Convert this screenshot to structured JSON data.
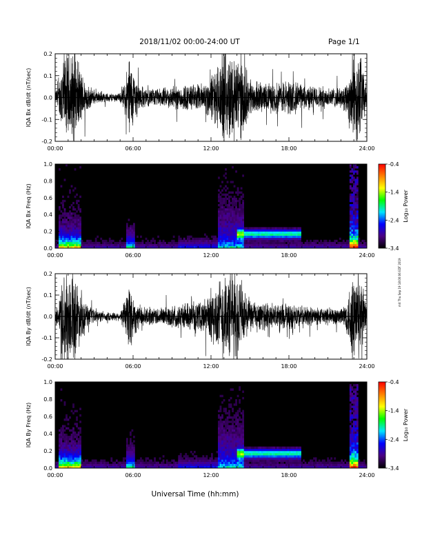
{
  "header": {
    "date_range": "2018/11/02  00:00-24:00 UT",
    "page": "Page 1/1"
  },
  "x_axis_title": "Universal Time (hh:mm)",
  "side_stamp": "mit Thu Sep 19 18:00:06 EDT 2019",
  "colorbar": {
    "label": "Log₁₀ Power",
    "ticks": [
      "-0.4",
      "-1.4",
      "-2.4",
      "-3.4"
    ],
    "range": [
      -3.4,
      -0.4
    ],
    "colors": [
      "#000000",
      "#4b0082",
      "#0000ff",
      "#00e5ff",
      "#00ff00",
      "#ffff00",
      "#ff8000",
      "#ff0000"
    ]
  },
  "chart_data": [
    {
      "type": "line",
      "ylabel": "IQA Bx dB/dt (nT/sec)",
      "xlim": [
        0,
        24
      ],
      "ylim": [
        -0.2,
        0.2
      ],
      "x_ticks": [
        "00:00",
        "06:00",
        "12:00",
        "18:00",
        "24:00"
      ],
      "y_ticks": [
        "0.2",
        "0.1",
        "0.0",
        "-0.1",
        "-0.2"
      ],
      "envelope": {
        "x": [
          0,
          0.3,
          0.5,
          1,
          1.5,
          2,
          2.5,
          3,
          4,
          5,
          5.4,
          5.7,
          6,
          6.5,
          7,
          8,
          9,
          10,
          11,
          11.5,
          12,
          12.5,
          13,
          13.5,
          14,
          14.5,
          15,
          16,
          17,
          18,
          19,
          20,
          21,
          22,
          22.5,
          22.8,
          23,
          23.5,
          24
        ],
        "amplitude": [
          0.03,
          0.06,
          0.2,
          0.2,
          0.2,
          0.12,
          0.06,
          0.03,
          0.02,
          0.02,
          0.08,
          0.2,
          0.12,
          0.06,
          0.04,
          0.04,
          0.05,
          0.06,
          0.06,
          0.07,
          0.1,
          0.15,
          0.2,
          0.2,
          0.2,
          0.16,
          0.08,
          0.06,
          0.07,
          0.08,
          0.06,
          0.05,
          0.05,
          0.04,
          0.08,
          0.2,
          0.2,
          0.2,
          0.04
        ]
      }
    },
    {
      "type": "heatmap",
      "ylabel": "IQA Bx Freq (Hz)",
      "xlim": [
        0,
        24
      ],
      "ylim": [
        0.0,
        1.0
      ],
      "x_ticks": [
        "00:00",
        "06:00",
        "12:00",
        "18:00",
        "24:00"
      ],
      "y_ticks": [
        "1.0",
        "0.8",
        "0.6",
        "0.4",
        "0.2",
        "0.0"
      ],
      "value_range": [
        -3.4,
        -0.4
      ],
      "features": [
        {
          "label": "strong broadband low-frequency activity",
          "start": 0.3,
          "end": 2.0
        },
        {
          "label": "burst",
          "start": 5.5,
          "end": 6.1
        },
        {
          "label": "broadband burst",
          "start": 12.5,
          "end": 14.5
        },
        {
          "label": "banded emission near 0.15-0.2 Hz",
          "start": 14.0,
          "end": 19.0
        },
        {
          "label": "strong broadband low-frequency activity",
          "start": 22.7,
          "end": 23.3
        }
      ]
    },
    {
      "type": "line",
      "ylabel": "IQA By dB/dt (nT/sec)",
      "xlim": [
        0,
        24
      ],
      "ylim": [
        -0.2,
        0.2
      ],
      "x_ticks": [
        "00:00",
        "06:00",
        "12:00",
        "18:00",
        "24:00"
      ],
      "y_ticks": [
        "0.2",
        "0.1",
        "0.0",
        "-0.1",
        "-0.2"
      ],
      "envelope": {
        "x": [
          0,
          0.3,
          0.5,
          1,
          1.5,
          2,
          2.5,
          3,
          4,
          5,
          5.4,
          5.7,
          6,
          6.5,
          7,
          8,
          9,
          10,
          11,
          11.5,
          12,
          12.5,
          13,
          13.5,
          14,
          14.5,
          15,
          16,
          17,
          18,
          19,
          20,
          21,
          22,
          22.5,
          22.8,
          23,
          23.5,
          24
        ],
        "amplitude": [
          0.03,
          0.06,
          0.2,
          0.2,
          0.2,
          0.1,
          0.05,
          0.03,
          0.02,
          0.02,
          0.08,
          0.2,
          0.1,
          0.05,
          0.04,
          0.04,
          0.05,
          0.06,
          0.06,
          0.08,
          0.12,
          0.16,
          0.2,
          0.2,
          0.2,
          0.14,
          0.07,
          0.06,
          0.06,
          0.06,
          0.05,
          0.04,
          0.04,
          0.04,
          0.08,
          0.2,
          0.2,
          0.2,
          0.04
        ]
      }
    },
    {
      "type": "heatmap",
      "ylabel": "IQA By Freq (Hz)",
      "xlim": [
        0,
        24
      ],
      "ylim": [
        0.0,
        1.0
      ],
      "x_ticks": [
        "00:00",
        "06:00",
        "12:00",
        "18:00",
        "24:00"
      ],
      "y_ticks": [
        "1.0",
        "0.8",
        "0.6",
        "0.4",
        "0.2",
        "0.0"
      ],
      "value_range": [
        -3.4,
        -0.4
      ],
      "features": [
        {
          "label": "strong broadband low-frequency activity",
          "start": 0.3,
          "end": 2.0
        },
        {
          "label": "burst",
          "start": 5.5,
          "end": 6.1
        },
        {
          "label": "broadband burst",
          "start": 12.5,
          "end": 14.5
        },
        {
          "label": "banded emission near 0.15-0.2 Hz",
          "start": 14.0,
          "end": 19.0
        },
        {
          "label": "strong broadband low-frequency activity",
          "start": 22.7,
          "end": 23.3
        }
      ]
    }
  ]
}
